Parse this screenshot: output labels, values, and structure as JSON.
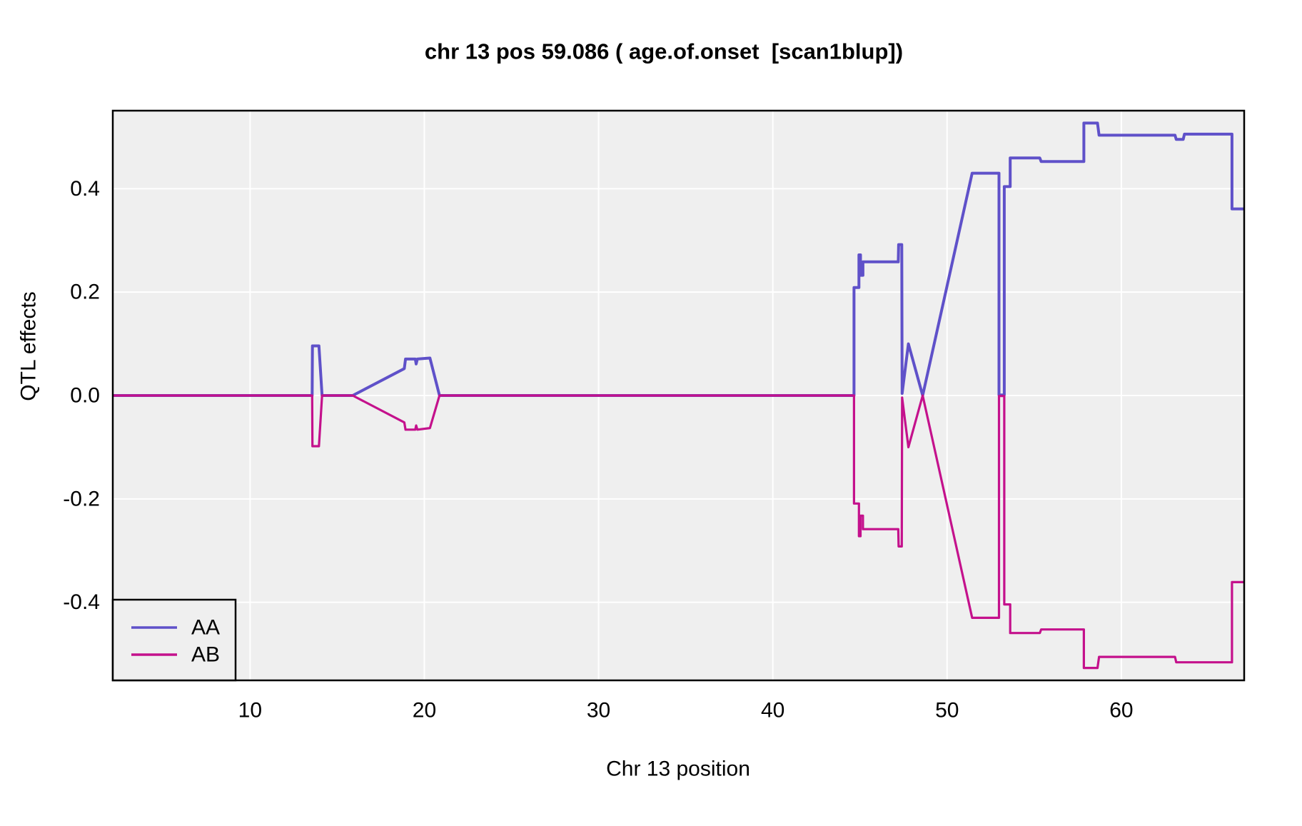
{
  "chart_data": {
    "type": "line",
    "title": "chr 13 pos 59.086 ( age.of.onset  [scan1blup])",
    "xlabel": "Chr 13 position",
    "ylabel": "QTL effects",
    "xlim": [
      2.12,
      67.05
    ],
    "ylim": [
      -0.551,
      0.551
    ],
    "x_ticks": [
      10,
      20,
      30,
      40,
      50,
      60
    ],
    "y_ticks": [
      0.4,
      0.2,
      0.0,
      -0.2,
      -0.4
    ],
    "y_tick_labels": [
      "0.4",
      "0.2",
      "0.0",
      "-0.2",
      "-0.4"
    ],
    "grid": true,
    "panel_bg": "#EFEFEF",
    "grid_color": "#FFFFFF",
    "border_color": "#000000",
    "legend_position": "bottom-left",
    "series": [
      {
        "name": "AA",
        "color": "#5F51C9",
        "points": [
          [
            2.12,
            0
          ],
          [
            13.56,
            0
          ],
          [
            13.58,
            0.096
          ],
          [
            13.95,
            0.096
          ],
          [
            14.13,
            0
          ],
          [
            15.89,
            0
          ],
          [
            18.85,
            0.052
          ],
          [
            18.92,
            0.0705
          ],
          [
            19.48,
            0.0705
          ],
          [
            19.53,
            0.061
          ],
          [
            19.6,
            0.0705
          ],
          [
            20.32,
            0.0725
          ],
          [
            20.87,
            0
          ],
          [
            44.66,
            0
          ],
          [
            44.66,
            0.209
          ],
          [
            44.94,
            0.209
          ],
          [
            44.94,
            0.272
          ],
          [
            45.03,
            0.272
          ],
          [
            45.03,
            0.2325
          ],
          [
            45.17,
            0.2325
          ],
          [
            45.17,
            0.2585
          ],
          [
            47.2,
            0.2585
          ],
          [
            47.22,
            0.292
          ],
          [
            47.4,
            0.292
          ],
          [
            47.42,
            0.004
          ],
          [
            47.78,
            0.1
          ],
          [
            48.6,
            0
          ],
          [
            51.44,
            0.43
          ],
          [
            52.98,
            0.43
          ],
          [
            52.98,
            0.001
          ],
          [
            53.28,
            0.001
          ],
          [
            53.28,
            0.404
          ],
          [
            53.62,
            0.404
          ],
          [
            53.62,
            0.4595
          ],
          [
            55.32,
            0.4595
          ],
          [
            55.4,
            0.4525
          ],
          [
            57.85,
            0.4525
          ],
          [
            57.85,
            0.527
          ],
          [
            58.63,
            0.527
          ],
          [
            58.72,
            0.5035
          ],
          [
            63.08,
            0.5035
          ],
          [
            63.15,
            0.4955
          ],
          [
            63.55,
            0.4955
          ],
          [
            63.62,
            0.5055
          ],
          [
            66.35,
            0.5055
          ],
          [
            66.35,
            0.361
          ],
          [
            67.05,
            0.361
          ]
        ]
      },
      {
        "name": "AB",
        "color": "#C4118C",
        "points": [
          [
            2.12,
            0
          ],
          [
            13.56,
            0
          ],
          [
            13.58,
            -0.098
          ],
          [
            13.95,
            -0.098
          ],
          [
            14.13,
            0
          ],
          [
            15.89,
            0
          ],
          [
            18.85,
            -0.052
          ],
          [
            18.92,
            -0.066
          ],
          [
            19.48,
            -0.066
          ],
          [
            19.53,
            -0.058
          ],
          [
            19.6,
            -0.066
          ],
          [
            20.32,
            -0.063
          ],
          [
            20.87,
            0
          ],
          [
            44.66,
            0
          ],
          [
            44.66,
            -0.209
          ],
          [
            44.94,
            -0.209
          ],
          [
            44.94,
            -0.272
          ],
          [
            45.03,
            -0.272
          ],
          [
            45.03,
            -0.2325
          ],
          [
            45.17,
            -0.2325
          ],
          [
            45.17,
            -0.2585
          ],
          [
            47.2,
            -0.2585
          ],
          [
            47.22,
            -0.292
          ],
          [
            47.4,
            -0.292
          ],
          [
            47.42,
            -0.004
          ],
          [
            47.78,
            -0.1
          ],
          [
            48.6,
            0
          ],
          [
            51.44,
            -0.43
          ],
          [
            52.98,
            -0.43
          ],
          [
            52.98,
            -0.001
          ],
          [
            53.28,
            -0.001
          ],
          [
            53.28,
            -0.404
          ],
          [
            53.62,
            -0.404
          ],
          [
            53.62,
            -0.4595
          ],
          [
            55.32,
            -0.4595
          ],
          [
            55.4,
            -0.4525
          ],
          [
            57.85,
            -0.4525
          ],
          [
            57.85,
            -0.527
          ],
          [
            58.63,
            -0.527
          ],
          [
            58.72,
            -0.5055
          ],
          [
            63.08,
            -0.5055
          ],
          [
            63.15,
            -0.516
          ],
          [
            66.35,
            -0.516
          ],
          [
            66.35,
            -0.361
          ],
          [
            67.05,
            -0.361
          ]
        ]
      }
    ],
    "legend": {
      "entries": [
        {
          "label": "AA",
          "color": "#5F51C9"
        },
        {
          "label": "AB",
          "color": "#C4118C"
        }
      ]
    }
  }
}
